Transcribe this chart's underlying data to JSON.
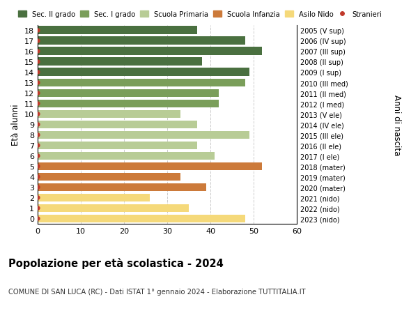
{
  "ages": [
    18,
    17,
    16,
    15,
    14,
    13,
    12,
    11,
    10,
    9,
    8,
    7,
    6,
    5,
    4,
    3,
    2,
    1,
    0
  ],
  "values": [
    37,
    48,
    52,
    38,
    49,
    48,
    42,
    42,
    33,
    37,
    49,
    37,
    41,
    52,
    33,
    39,
    26,
    35,
    48
  ],
  "right_labels": [
    "2005 (V sup)",
    "2006 (IV sup)",
    "2007 (III sup)",
    "2008 (II sup)",
    "2009 (I sup)",
    "2010 (III med)",
    "2011 (II med)",
    "2012 (I med)",
    "2013 (V ele)",
    "2014 (IV ele)",
    "2015 (III ele)",
    "2016 (II ele)",
    "2017 (I ele)",
    "2018 (mater)",
    "2019 (mater)",
    "2020 (mater)",
    "2021 (nido)",
    "2022 (nido)",
    "2023 (nido)"
  ],
  "bar_colors": [
    "#4a7040",
    "#4a7040",
    "#4a7040",
    "#4a7040",
    "#4a7040",
    "#7a9e5a",
    "#7a9e5a",
    "#7a9e5a",
    "#b8cc96",
    "#b8cc96",
    "#b8cc96",
    "#b8cc96",
    "#b8cc96",
    "#cc7a3a",
    "#cc7a3a",
    "#cc7a3a",
    "#f5d97a",
    "#f5d97a",
    "#f5d97a"
  ],
  "legend_labels": [
    "Sec. II grado",
    "Sec. I grado",
    "Scuola Primaria",
    "Scuola Infanzia",
    "Asilo Nido",
    "Stranieri"
  ],
  "legend_colors": [
    "#4a7040",
    "#7a9e5a",
    "#b8cc96",
    "#cc7a3a",
    "#f5d97a",
    "#c0392b"
  ],
  "dot_color": "#c0392b",
  "title": "Popolazione per età scolastica - 2024",
  "subtitle": "COMUNE DI SAN LUCA (RC) - Dati ISTAT 1° gennaio 2024 - Elaborazione TUTTITALIA.IT",
  "ylabel_left": "Età alunni",
  "ylabel_right": "Anni di nascita",
  "xlim": [
    0,
    60
  ],
  "xticks": [
    0,
    10,
    20,
    30,
    40,
    50,
    60
  ],
  "background_color": "#ffffff",
  "bar_height": 0.78
}
